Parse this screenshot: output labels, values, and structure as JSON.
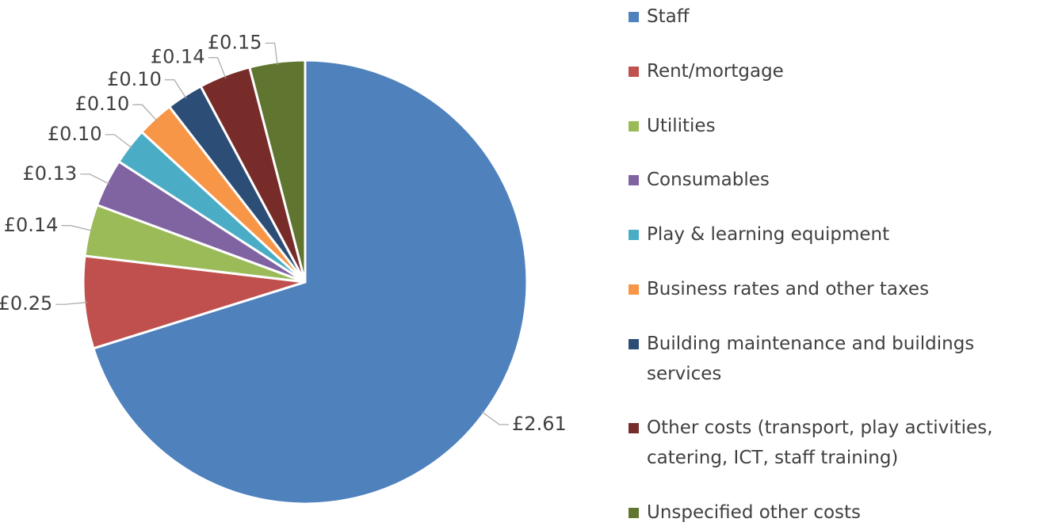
{
  "chart_data": {
    "type": "pie",
    "categories": [
      "Staff",
      "Rent/mortgage",
      "Utilities",
      "Consumables",
      "Play & learning equipment",
      "Business rates and other taxes",
      "Building maintenance and buildings services",
      "Other costs (transport, play activities, catering, ICT, staff training)",
      "Unspecified other costs"
    ],
    "values": [
      2.61,
      0.25,
      0.14,
      0.13,
      0.1,
      0.1,
      0.1,
      0.14,
      0.15
    ],
    "value_labels": [
      "£2.61",
      "£0.25",
      "£0.14",
      "£0.13",
      "£0.10",
      "£0.10",
      "£0.10",
      "£0.14",
      "£0.15"
    ],
    "colors": [
      "#4f81bd",
      "#c0504d",
      "#9bbb59",
      "#8064a2",
      "#4bacc6",
      "#f79646",
      "#2c4d75",
      "#772c2a",
      "#5f7530"
    ],
    "legend": "right"
  }
}
